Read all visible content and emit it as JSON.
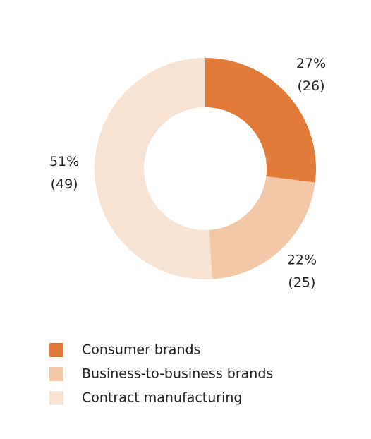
{
  "chart_data": {
    "type": "donut",
    "categories": [
      "Consumer brands",
      "Business-to-business brands",
      "Contract manufacturing"
    ],
    "values": [
      27,
      22,
      51
    ],
    "value_labels": [
      "27%",
      "22%",
      "51%"
    ],
    "prior_values": [
      26,
      25,
      49
    ],
    "prior_value_labels": [
      "(26)",
      "(25)",
      "(49)"
    ],
    "colors": [
      "#e07b39",
      "#f2c8a8",
      "#f7e3d3"
    ]
  }
}
